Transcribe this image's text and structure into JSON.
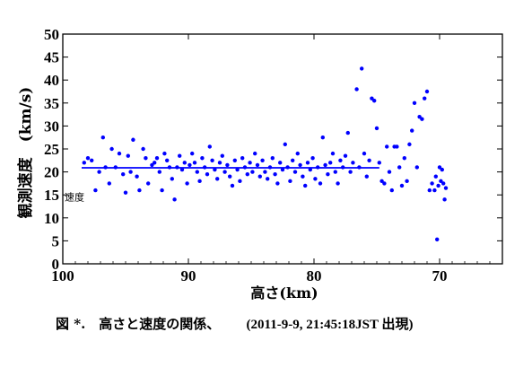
{
  "chart_data": {
    "type": "scatter",
    "xlabel": "高さ(km)",
    "ylabel": "観測速度　(km/s)",
    "xlim": [
      100,
      65
    ],
    "ylim": [
      0,
      50
    ],
    "x_ticks": [
      100,
      90,
      80,
      70
    ],
    "y_ticks": [
      0,
      5,
      10,
      15,
      20,
      25,
      30,
      35,
      40,
      45,
      50
    ],
    "x_tick_labels": [
      "100",
      "90",
      "80",
      "70"
    ],
    "y_tick_labels": [
      "0",
      "5",
      "10",
      "15",
      "20",
      "25",
      "30",
      "35",
      "40",
      "45",
      "50"
    ],
    "x_reversed": true,
    "grid": false,
    "color": "#0000ff",
    "annotation": "速度",
    "annotation_y": 13,
    "fit_line": {
      "x": [
        98.5,
        74.8
      ],
      "y": [
        20.9,
        20.9
      ]
    },
    "series": [
      {
        "points": [
          [
            98.3,
            22.0
          ],
          [
            98.0,
            23.0
          ],
          [
            97.7,
            22.5
          ],
          [
            97.4,
            16.0
          ],
          [
            97.1,
            20.0
          ],
          [
            96.8,
            27.5
          ],
          [
            96.6,
            21.0
          ],
          [
            96.3,
            17.5
          ],
          [
            96.1,
            25.0
          ],
          [
            95.8,
            21.0
          ],
          [
            95.5,
            24.0
          ],
          [
            95.2,
            19.5
          ],
          [
            95.0,
            15.5
          ],
          [
            94.8,
            23.5
          ],
          [
            94.6,
            20.0
          ],
          [
            94.4,
            27.0
          ],
          [
            94.1,
            19.0
          ],
          [
            93.9,
            16.0
          ],
          [
            93.6,
            25.0
          ],
          [
            93.4,
            23.0
          ],
          [
            93.2,
            17.5
          ],
          [
            92.9,
            21.5
          ],
          [
            92.7,
            22.0
          ],
          [
            92.5,
            23.0
          ],
          [
            92.3,
            20.0
          ],
          [
            92.1,
            16.0
          ],
          [
            91.9,
            24.0
          ],
          [
            91.7,
            22.5
          ],
          [
            91.5,
            21.0
          ],
          [
            91.3,
            18.5
          ],
          [
            91.1,
            14.0
          ],
          [
            90.9,
            21.0
          ],
          [
            90.7,
            23.5
          ],
          [
            90.5,
            20.5
          ],
          [
            90.3,
            22.0
          ],
          [
            90.1,
            17.5
          ],
          [
            89.9,
            21.5
          ],
          [
            89.7,
            24.0
          ],
          [
            89.5,
            22.0
          ],
          [
            89.3,
            20.0
          ],
          [
            89.1,
            18.0
          ],
          [
            88.9,
            23.0
          ],
          [
            88.7,
            21.0
          ],
          [
            88.5,
            19.5
          ],
          [
            88.3,
            25.5
          ],
          [
            88.1,
            22.5
          ],
          [
            87.9,
            20.5
          ],
          [
            87.7,
            18.5
          ],
          [
            87.5,
            22.0
          ],
          [
            87.3,
            23.5
          ],
          [
            87.1,
            20.0
          ],
          [
            86.9,
            21.5
          ],
          [
            86.7,
            19.0
          ],
          [
            86.5,
            17.0
          ],
          [
            86.3,
            22.5
          ],
          [
            86.1,
            20.5
          ],
          [
            85.9,
            18.0
          ],
          [
            85.7,
            23.0
          ],
          [
            85.5,
            21.0
          ],
          [
            85.3,
            19.5
          ],
          [
            85.1,
            22.0
          ],
          [
            84.9,
            20.0
          ],
          [
            84.7,
            24.0
          ],
          [
            84.5,
            21.5
          ],
          [
            84.3,
            19.0
          ],
          [
            84.1,
            22.5
          ],
          [
            83.9,
            20.0
          ],
          [
            83.7,
            18.5
          ],
          [
            83.5,
            21.0
          ],
          [
            83.3,
            23.0
          ],
          [
            83.1,
            19.5
          ],
          [
            82.9,
            17.5
          ],
          [
            82.7,
            22.0
          ],
          [
            82.5,
            20.5
          ],
          [
            82.3,
            26.0
          ],
          [
            82.1,
            21.0
          ],
          [
            81.9,
            18.0
          ],
          [
            81.7,
            22.5
          ],
          [
            81.5,
            20.0
          ],
          [
            81.3,
            24.0
          ],
          [
            81.1,
            21.5
          ],
          [
            80.9,
            19.0
          ],
          [
            80.7,
            17.0
          ],
          [
            80.5,
            22.0
          ],
          [
            80.3,
            20.5
          ],
          [
            80.1,
            23.0
          ],
          [
            79.9,
            18.5
          ],
          [
            79.7,
            21.0
          ],
          [
            79.5,
            17.5
          ],
          [
            79.3,
            27.5
          ],
          [
            79.1,
            21.5
          ],
          [
            78.9,
            19.5
          ],
          [
            78.7,
            22.0
          ],
          [
            78.5,
            24.0
          ],
          [
            78.3,
            20.0
          ],
          [
            78.1,
            17.5
          ],
          [
            77.9,
            22.5
          ],
          [
            77.7,
            21.0
          ],
          [
            77.5,
            23.5
          ],
          [
            77.3,
            28.5
          ],
          [
            77.1,
            20.0
          ],
          [
            76.9,
            22.0
          ],
          [
            76.6,
            38.0
          ],
          [
            76.4,
            21.0
          ],
          [
            76.2,
            42.5
          ],
          [
            76.0,
            24.0
          ],
          [
            75.8,
            19.0
          ],
          [
            75.6,
            22.5
          ],
          [
            75.4,
            36.0
          ],
          [
            75.2,
            35.5
          ],
          [
            75.0,
            29.5
          ],
          [
            74.8,
            22.0
          ],
          [
            74.6,
            18.0
          ],
          [
            74.4,
            17.5
          ],
          [
            74.2,
            25.5
          ],
          [
            74.0,
            20.0
          ],
          [
            73.8,
            16.0
          ],
          [
            73.6,
            25.5
          ],
          [
            73.4,
            25.5
          ],
          [
            73.2,
            21.0
          ],
          [
            73.0,
            17.0
          ],
          [
            72.8,
            23.0
          ],
          [
            72.6,
            18.0
          ],
          [
            72.4,
            26.0
          ],
          [
            72.2,
            29.0
          ],
          [
            72.0,
            35.0
          ],
          [
            71.8,
            21.0
          ],
          [
            71.6,
            32.0
          ],
          [
            71.4,
            31.5
          ],
          [
            71.2,
            36.0
          ],
          [
            71.0,
            37.5
          ],
          [
            70.8,
            16.0
          ],
          [
            70.6,
            17.5
          ],
          [
            70.4,
            16.0
          ],
          [
            70.3,
            19.0
          ],
          [
            70.2,
            5.3
          ],
          [
            70.1,
            17.0
          ],
          [
            70.0,
            21.0
          ],
          [
            69.9,
            18.0
          ],
          [
            69.8,
            20.5
          ],
          [
            69.7,
            17.5
          ],
          [
            69.6,
            14.0
          ],
          [
            69.5,
            16.5
          ]
        ]
      }
    ]
  },
  "caption": {
    "main": "図 *.　高さと速度の関係、",
    "time": "(2011-9-9, 21:45:18JST 出現)"
  }
}
